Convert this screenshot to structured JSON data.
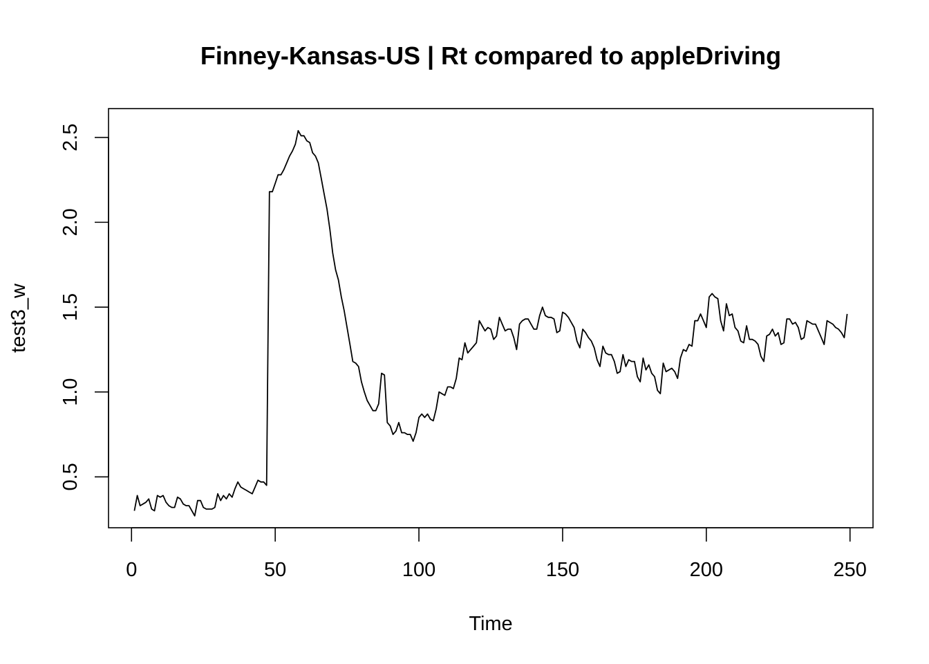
{
  "chart_data": {
    "type": "line",
    "title": "Finney-Kansas-US | Rt compared to appleDriving",
    "xlabel": "Time",
    "ylabel": "test3_w",
    "xlim": [
      -8,
      258
    ],
    "ylim": [
      0.2,
      2.67
    ],
    "x_ticks": [
      0,
      50,
      100,
      150,
      200,
      250
    ],
    "y_ticks": [
      0.5,
      1.0,
      1.5,
      2.0,
      2.5
    ],
    "x_tick_labels": [
      "0",
      "50",
      "100",
      "150",
      "200",
      "250"
    ],
    "y_tick_labels": [
      "0.5",
      "1.0",
      "1.5",
      "2.0",
      "2.5"
    ],
    "grid": false,
    "legend": "none",
    "series": [
      {
        "color": "#000000",
        "x_start": 1,
        "x_step": 1,
        "values": [
          0.3,
          0.39,
          0.33,
          0.34,
          0.35,
          0.37,
          0.31,
          0.3,
          0.39,
          0.38,
          0.39,
          0.35,
          0.33,
          0.32,
          0.32,
          0.38,
          0.37,
          0.34,
          0.33,
          0.33,
          0.3,
          0.27,
          0.36,
          0.36,
          0.32,
          0.31,
          0.31,
          0.31,
          0.32,
          0.4,
          0.36,
          0.39,
          0.37,
          0.4,
          0.38,
          0.43,
          0.47,
          0.44,
          0.43,
          0.42,
          0.41,
          0.4,
          0.44,
          0.48,
          0.47,
          0.47,
          0.45,
          2.18,
          2.18,
          2.23,
          2.28,
          2.28,
          2.31,
          2.35,
          2.39,
          2.42,
          2.46,
          2.54,
          2.51,
          2.51,
          2.48,
          2.47,
          2.41,
          2.39,
          2.35,
          2.26,
          2.17,
          2.08,
          1.96,
          1.82,
          1.72,
          1.66,
          1.56,
          1.48,
          1.38,
          1.28,
          1.18,
          1.17,
          1.15,
          1.06,
          1.0,
          0.95,
          0.92,
          0.89,
          0.89,
          0.93,
          1.11,
          1.1,
          0.82,
          0.8,
          0.75,
          0.77,
          0.82,
          0.76,
          0.76,
          0.75,
          0.75,
          0.71,
          0.76,
          0.85,
          0.87,
          0.85,
          0.87,
          0.84,
          0.83,
          0.9,
          1.0,
          0.99,
          0.98,
          1.03,
          1.03,
          1.02,
          1.08,
          1.2,
          1.19,
          1.29,
          1.23,
          1.25,
          1.27,
          1.29,
          1.42,
          1.39,
          1.36,
          1.38,
          1.37,
          1.31,
          1.33,
          1.44,
          1.4,
          1.36,
          1.37,
          1.37,
          1.32,
          1.25,
          1.4,
          1.42,
          1.43,
          1.43,
          1.4,
          1.37,
          1.37,
          1.45,
          1.5,
          1.45,
          1.44,
          1.44,
          1.43,
          1.35,
          1.36,
          1.47,
          1.46,
          1.44,
          1.41,
          1.38,
          1.3,
          1.26,
          1.37,
          1.35,
          1.32,
          1.3,
          1.26,
          1.19,
          1.15,
          1.27,
          1.23,
          1.22,
          1.22,
          1.18,
          1.11,
          1.12,
          1.22,
          1.15,
          1.19,
          1.18,
          1.18,
          1.09,
          1.06,
          1.2,
          1.13,
          1.16,
          1.11,
          1.09,
          1.01,
          0.99,
          1.17,
          1.12,
          1.13,
          1.14,
          1.12,
          1.08,
          1.2,
          1.25,
          1.24,
          1.28,
          1.27,
          1.42,
          1.42,
          1.46,
          1.42,
          1.38,
          1.56,
          1.58,
          1.56,
          1.55,
          1.42,
          1.36,
          1.52,
          1.45,
          1.46,
          1.38,
          1.36,
          1.3,
          1.29,
          1.39,
          1.31,
          1.31,
          1.3,
          1.28,
          1.21,
          1.18,
          1.33,
          1.34,
          1.37,
          1.33,
          1.35,
          1.28,
          1.29,
          1.43,
          1.43,
          1.4,
          1.41,
          1.38,
          1.31,
          1.32,
          1.42,
          1.41,
          1.4,
          1.4,
          1.36,
          1.32,
          1.28,
          1.42,
          1.41,
          1.4,
          1.38,
          1.37,
          1.35,
          1.32,
          1.46
        ]
      }
    ]
  }
}
